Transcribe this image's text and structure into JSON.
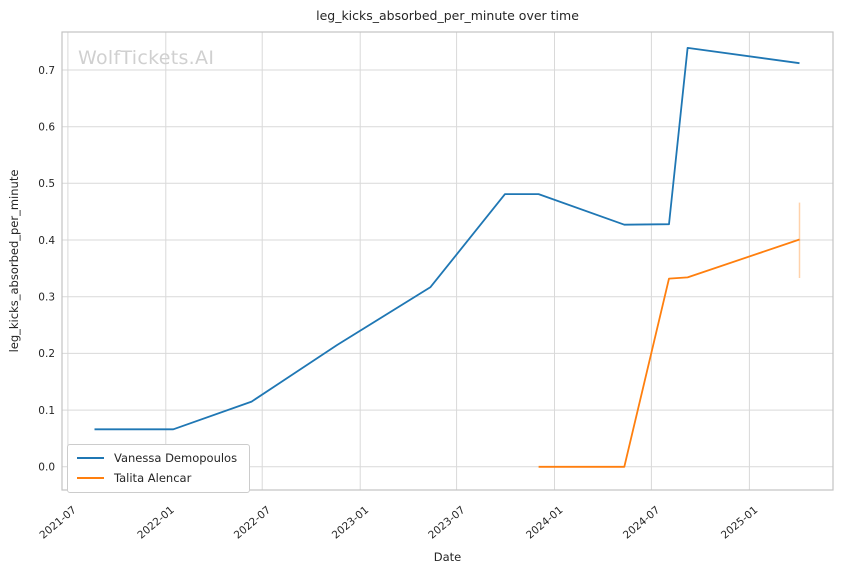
{
  "watermark": {
    "text": "WolfTickets.AI"
  },
  "colors": {
    "background": "#ffffff",
    "grid": "#d9d9d9",
    "spine": "#c3c3c3",
    "text": "#262626",
    "watermark": "#d0d0d0",
    "series_blue": "#1f77b4",
    "series_orange": "#ff7f0e",
    "error_bar": "#ff7f0e"
  },
  "chart_data": {
    "type": "line",
    "title": "leg_kicks_absorbed_per_minute over time",
    "xlabel": "Date",
    "ylabel": "leg_kicks_absorbed_per_minute",
    "grid": true,
    "legend_position": "lower left",
    "xlim": [
      "2021-06-20",
      "2025-06-07"
    ],
    "ylim": [
      -0.041,
      0.767
    ],
    "x_ticks": [
      {
        "date": "2021-07-01",
        "label": "2021-07"
      },
      {
        "date": "2022-01-01",
        "label": "2022-01"
      },
      {
        "date": "2022-07-01",
        "label": "2022-07"
      },
      {
        "date": "2023-01-01",
        "label": "2023-01"
      },
      {
        "date": "2023-07-01",
        "label": "2023-07"
      },
      {
        "date": "2024-01-01",
        "label": "2024-01"
      },
      {
        "date": "2024-07-01",
        "label": "2024-07"
      },
      {
        "date": "2025-01-01",
        "label": "2025-01"
      }
    ],
    "y_ticks": [
      0.0,
      0.1,
      0.2,
      0.3,
      0.4,
      0.5,
      0.6,
      0.7
    ],
    "series": [
      {
        "name": "Vanessa Demopoulos",
        "color": "#1f77b4",
        "points": [
          {
            "date": "2021-08-20",
            "value": 0.066
          },
          {
            "date": "2022-01-15",
            "value": 0.066
          },
          {
            "date": "2022-06-11",
            "value": 0.115
          },
          {
            "date": "2022-11-19",
            "value": 0.215
          },
          {
            "date": "2023-05-13",
            "value": 0.317
          },
          {
            "date": "2023-09-30",
            "value": 0.481
          },
          {
            "date": "2023-12-02",
            "value": 0.481
          },
          {
            "date": "2024-05-11",
            "value": 0.427
          },
          {
            "date": "2024-08-03",
            "value": 0.428
          },
          {
            "date": "2024-09-07",
            "value": 0.739
          },
          {
            "date": "2025-04-05",
            "value": 0.712
          }
        ]
      },
      {
        "name": "Talita Alencar",
        "color": "#ff7f0e",
        "points": [
          {
            "date": "2023-12-02",
            "value": 0.0
          },
          {
            "date": "2024-05-11",
            "value": 0.0
          },
          {
            "date": "2024-08-03",
            "value": 0.332
          },
          {
            "date": "2024-09-07",
            "value": 0.334
          },
          {
            "date": "2025-04-05",
            "value": 0.401
          }
        ],
        "error_bar": {
          "date": "2025-04-05",
          "lo": 0.333,
          "hi": 0.466
        }
      }
    ]
  }
}
